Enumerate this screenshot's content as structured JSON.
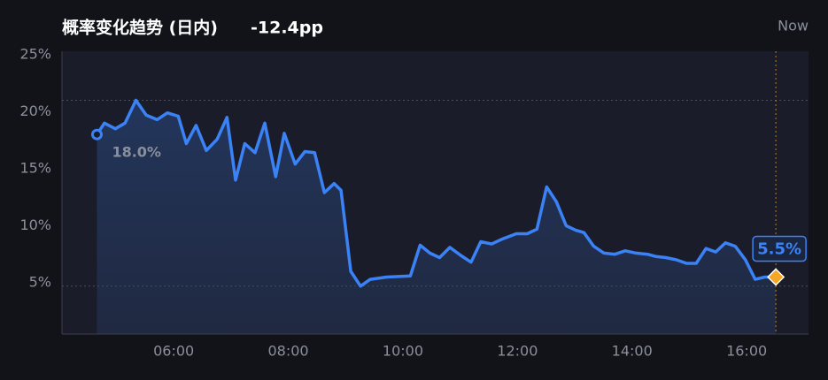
{
  "chart_data": {
    "type": "line",
    "title": "概率变化趋势 (日内)",
    "change": "-12.4pp",
    "now_label": "Now",
    "start_label": "18.0%",
    "end_label": "5.5%",
    "color": "#3b82f6",
    "marker_color": "#f5a623",
    "x": [
      4.66,
      4.79,
      4.98,
      5.15,
      5.34,
      5.52,
      5.71,
      5.89,
      6.08,
      6.22,
      6.39,
      6.57,
      6.76,
      6.93,
      7.08,
      7.24,
      7.42,
      7.59,
      7.78,
      7.93,
      8.12,
      8.29,
      8.46,
      8.63,
      8.8,
      8.92,
      9.09,
      9.26,
      9.43,
      9.72,
      10.13,
      10.3,
      10.47,
      10.64,
      10.82,
      11.01,
      11.19,
      11.36,
      11.55,
      11.72,
      11.98,
      12.17,
      12.34,
      12.51,
      12.68,
      12.85,
      13.02,
      13.16,
      13.33,
      13.51,
      13.7,
      13.88,
      14.07,
      14.27,
      14.42,
      14.59,
      14.78,
      14.95,
      15.12,
      15.29,
      15.46,
      15.63,
      15.8,
      15.98,
      16.15,
      16.32,
      16.51
    ],
    "values": [
      18.0,
      19.0,
      18.5,
      19.0,
      21.0,
      19.7,
      19.3,
      19.9,
      19.6,
      17.2,
      18.8,
      16.6,
      17.6,
      19.5,
      14.0,
      17.2,
      16.4,
      19.0,
      14.3,
      18.1,
      15.4,
      16.5,
      16.4,
      12.9,
      13.7,
      13.1,
      6.0,
      4.7,
      5.3,
      5.5,
      5.6,
      8.3,
      7.6,
      7.2,
      8.1,
      7.4,
      6.8,
      8.6,
      8.4,
      8.8,
      9.3,
      9.3,
      9.7,
      13.4,
      12.1,
      10.0,
      9.6,
      9.4,
      8.2,
      7.6,
      7.5,
      7.8,
      7.6,
      7.5,
      7.3,
      7.2,
      7.0,
      6.7,
      6.7,
      8.0,
      7.7,
      8.5,
      8.2,
      7.0,
      5.3,
      5.5,
      5.5
    ],
    "xlim": [
      4.05,
      17.08
    ],
    "xticks": [
      {
        "value": 6,
        "label": "06:00"
      },
      {
        "value": 8,
        "label": "08:00"
      },
      {
        "value": 10,
        "label": "10:00"
      },
      {
        "value": 12,
        "label": "12:00"
      },
      {
        "value": 14,
        "label": "14:00"
      },
      {
        "value": 16,
        "label": "16:00"
      }
    ],
    "ylim": [
      0.5,
      25.3
    ],
    "yticks": [
      {
        "value": 5,
        "label": "5%"
      },
      {
        "value": 10,
        "label": "10%"
      },
      {
        "value": 15,
        "label": "15%"
      },
      {
        "value": 20,
        "label": "20%"
      },
      {
        "value": 25,
        "label": "25%"
      }
    ]
  }
}
